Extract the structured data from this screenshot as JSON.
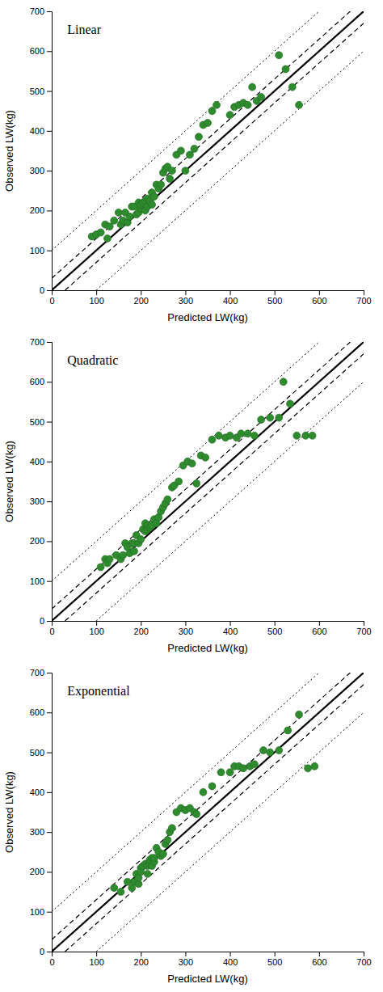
{
  "chart_data": [
    {
      "type": "scatter",
      "title": "Linear",
      "xlabel": "Predicted LW(kg)",
      "ylabel": "Observed LW(kg)",
      "xlim": [
        0,
        700
      ],
      "ylim": [
        0,
        700
      ],
      "xticks": [
        0,
        100,
        200,
        300,
        400,
        500,
        600,
        700
      ],
      "yticks": [
        0,
        100,
        200,
        300,
        400,
        500,
        600,
        700
      ],
      "series": [
        {
          "type": "line",
          "x": [
            0,
            600
          ],
          "values": [
            100,
            700
          ],
          "color": "black",
          "line_style": "dotted"
        },
        {
          "type": "line",
          "x": [
            100,
            700
          ],
          "values": [
            0,
            600
          ],
          "color": "black",
          "line_style": "dotted"
        },
        {
          "type": "line",
          "x": [
            0,
            670
          ],
          "values": [
            30,
            700
          ],
          "color": "black",
          "line_style": "dashed"
        },
        {
          "type": "line",
          "x": [
            30,
            700
          ],
          "values": [
            0,
            670
          ],
          "color": "black",
          "line_style": "dashed"
        },
        {
          "type": "line",
          "x": [
            0,
            700
          ],
          "values": [
            0,
            700
          ],
          "color": "black",
          "line_style": "solid"
        },
        {
          "type": "scatter",
          "color": "#2e8b2e",
          "marker": "circle",
          "x": [
            90,
            100,
            110,
            120,
            125,
            130,
            140,
            150,
            155,
            160,
            165,
            170,
            175,
            180,
            185,
            190,
            195,
            195,
            200,
            200,
            205,
            210,
            210,
            215,
            215,
            220,
            225,
            225,
            230,
            235,
            240,
            245,
            250,
            255,
            260,
            265,
            270,
            280,
            290,
            300,
            310,
            320,
            330,
            340,
            350,
            360,
            370,
            400,
            410,
            420,
            430,
            440,
            450,
            460,
            470,
            510,
            525,
            540,
            555
          ],
          "values": [
            135,
            140,
            145,
            165,
            130,
            160,
            175,
            195,
            165,
            175,
            195,
            170,
            185,
            210,
            210,
            190,
            195,
            220,
            205,
            215,
            220,
            225,
            200,
            210,
            230,
            225,
            215,
            245,
            235,
            265,
            255,
            265,
            295,
            305,
            310,
            280,
            300,
            340,
            350,
            300,
            340,
            355,
            385,
            415,
            420,
            450,
            465,
            440,
            460,
            465,
            470,
            465,
            510,
            475,
            485,
            590,
            555,
            510,
            465
          ]
        }
      ]
    },
    {
      "type": "scatter",
      "title": "Quadratic",
      "xlabel": "Predicted LW(kg)",
      "ylabel": "Observed LW(kg)",
      "xlim": [
        0,
        700
      ],
      "ylim": [
        0,
        700
      ],
      "xticks": [
        0,
        100,
        200,
        300,
        400,
        500,
        600,
        700
      ],
      "yticks": [
        0,
        100,
        200,
        300,
        400,
        500,
        600,
        700
      ],
      "series": [
        {
          "type": "line",
          "x": [
            0,
            600
          ],
          "values": [
            100,
            700
          ],
          "color": "black",
          "line_style": "dotted"
        },
        {
          "type": "line",
          "x": [
            100,
            700
          ],
          "values": [
            0,
            600
          ],
          "color": "black",
          "line_style": "dotted"
        },
        {
          "type": "line",
          "x": [
            0,
            670
          ],
          "values": [
            30,
            700
          ],
          "color": "black",
          "line_style": "dashed"
        },
        {
          "type": "line",
          "x": [
            30,
            700
          ],
          "values": [
            0,
            670
          ],
          "color": "black",
          "line_style": "dashed"
        },
        {
          "type": "line",
          "x": [
            0,
            700
          ],
          "values": [
            0,
            700
          ],
          "color": "black",
          "line_style": "solid"
        },
        {
          "type": "scatter",
          "color": "#2e8b2e",
          "marker": "circle",
          "x": [
            110,
            120,
            125,
            130,
            145,
            155,
            160,
            165,
            170,
            175,
            180,
            185,
            185,
            190,
            195,
            200,
            205,
            210,
            210,
            215,
            215,
            220,
            225,
            230,
            235,
            240,
            245,
            250,
            255,
            260,
            270,
            275,
            285,
            295,
            305,
            315,
            325,
            335,
            345,
            360,
            375,
            390,
            400,
            415,
            425,
            440,
            455,
            470,
            490,
            510,
            520,
            535,
            550,
            570,
            585
          ],
          "values": [
            135,
            155,
            145,
            155,
            165,
            155,
            165,
            195,
            185,
            170,
            195,
            175,
            195,
            215,
            195,
            205,
            230,
            225,
            245,
            240,
            230,
            235,
            240,
            255,
            245,
            260,
            275,
            285,
            295,
            305,
            335,
            340,
            350,
            390,
            400,
            395,
            345,
            415,
            410,
            455,
            465,
            460,
            465,
            460,
            470,
            470,
            465,
            505,
            510,
            510,
            600,
            545,
            465,
            465,
            465
          ]
        }
      ]
    },
    {
      "type": "scatter",
      "title": "Exponential",
      "xlabel": "Predicted LW(kg)",
      "ylabel": "Observed LW(kg)",
      "xlim": [
        0,
        700
      ],
      "ylim": [
        0,
        700
      ],
      "xticks": [
        0,
        100,
        200,
        300,
        400,
        500,
        600,
        700
      ],
      "yticks": [
        0,
        100,
        200,
        300,
        400,
        500,
        600,
        700
      ],
      "series": [
        {
          "type": "line",
          "x": [
            0,
            600
          ],
          "values": [
            100,
            700
          ],
          "color": "black",
          "line_style": "dotted"
        },
        {
          "type": "line",
          "x": [
            100,
            700
          ],
          "values": [
            0,
            600
          ],
          "color": "black",
          "line_style": "dotted"
        },
        {
          "type": "line",
          "x": [
            0,
            670
          ],
          "values": [
            30,
            700
          ],
          "color": "black",
          "line_style": "dashed"
        },
        {
          "type": "line",
          "x": [
            30,
            700
          ],
          "values": [
            0,
            670
          ],
          "color": "black",
          "line_style": "dashed"
        },
        {
          "type": "line",
          "x": [
            0,
            700
          ],
          "values": [
            0,
            700
          ],
          "color": "black",
          "line_style": "solid"
        },
        {
          "type": "scatter",
          "color": "#2e8b2e",
          "marker": "circle",
          "x": [
            140,
            155,
            170,
            180,
            185,
            190,
            195,
            195,
            200,
            200,
            205,
            210,
            215,
            215,
            220,
            220,
            225,
            225,
            230,
            230,
            235,
            240,
            245,
            250,
            255,
            260,
            265,
            270,
            280,
            290,
            300,
            310,
            320,
            325,
            340,
            360,
            380,
            400,
            410,
            420,
            430,
            445,
            455,
            475,
            490,
            510,
            530,
            555,
            575,
            590
          ],
          "values": [
            160,
            150,
            175,
            160,
            175,
            195,
            170,
            185,
            210,
            200,
            215,
            220,
            195,
            215,
            220,
            230,
            215,
            235,
            225,
            235,
            260,
            250,
            240,
            245,
            270,
            280,
            300,
            310,
            350,
            360,
            355,
            360,
            350,
            345,
            400,
            415,
            450,
            450,
            465,
            465,
            460,
            465,
            470,
            505,
            500,
            505,
            555,
            595,
            460,
            465
          ]
        }
      ]
    }
  ]
}
